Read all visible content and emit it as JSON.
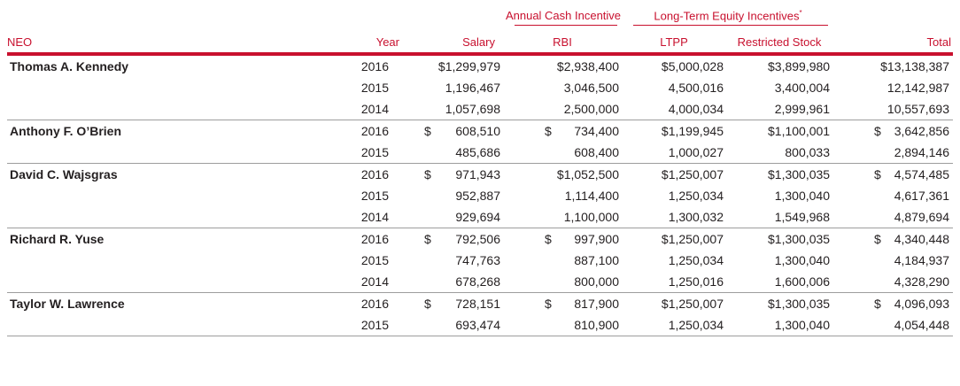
{
  "header": {
    "group_annual": "Annual Cash Incentive",
    "group_longterm": "Long-Term Equity Incentives",
    "group_longterm_mark": "*",
    "col_neo": "NEO",
    "col_year": "Year",
    "col_salary": "Salary",
    "col_rbi": "RBI",
    "col_ltpp": "LTPP",
    "col_rs": "Restricted Stock",
    "col_total": "Total"
  },
  "colors": {
    "accent": "#c8102e",
    "rule": "#9d9d9d",
    "text": "#231f20"
  },
  "neos": [
    {
      "name": "Thomas A. Kennedy",
      "rows": [
        {
          "year": "2016",
          "salary": "$1,299,979",
          "rbi": "$2,938,400",
          "ltpp": "$5,000,028",
          "rs": "$3,899,980",
          "total": "$13,138,387"
        },
        {
          "year": "2015",
          "salary": "1,196,467",
          "rbi": "3,046,500",
          "ltpp": "4,500,016",
          "rs": "3,400,004",
          "total": "12,142,987"
        },
        {
          "year": "2014",
          "salary": "1,057,698",
          "rbi": "2,500,000",
          "ltpp": "4,000,034",
          "rs": "2,999,961",
          "total": "10,557,693"
        }
      ]
    },
    {
      "name": "Anthony F. O’Brien",
      "rows": [
        {
          "year": "2016",
          "salary": "$ 608,510",
          "rbi": "$ 734,400",
          "ltpp": "$1,199,945",
          "rs": "$1,100,001",
          "total": "$ 3,642,856"
        },
        {
          "year": "2015",
          "salary": "485,686",
          "rbi": "608,400",
          "ltpp": "1,000,027",
          "rs": "800,033",
          "total": "2,894,146"
        }
      ]
    },
    {
      "name": "David C. Wajsgras",
      "rows": [
        {
          "year": "2016",
          "salary": "$ 971,943",
          "rbi": "$1,052,500",
          "ltpp": "$1,250,007",
          "rs": "$1,300,035",
          "total": "$ 4,574,485"
        },
        {
          "year": "2015",
          "salary": "952,887",
          "rbi": "1,114,400",
          "ltpp": "1,250,034",
          "rs": "1,300,040",
          "total": "4,617,361"
        },
        {
          "year": "2014",
          "salary": "929,694",
          "rbi": "1,100,000",
          "ltpp": "1,300,032",
          "rs": "1,549,968",
          "total": "4,879,694"
        }
      ]
    },
    {
      "name": "Richard R. Yuse",
      "rows": [
        {
          "year": "2016",
          "salary": "$ 792,506",
          "rbi": "$ 997,900",
          "ltpp": "$1,250,007",
          "rs": "$1,300,035",
          "total": "$ 4,340,448"
        },
        {
          "year": "2015",
          "salary": "747,763",
          "rbi": "887,100",
          "ltpp": "1,250,034",
          "rs": "1,300,040",
          "total": "4,184,937"
        },
        {
          "year": "2014",
          "salary": "678,268",
          "rbi": "800,000",
          "ltpp": "1,250,016",
          "rs": "1,600,006",
          "total": "4,328,290"
        }
      ]
    },
    {
      "name": "Taylor W. Lawrence",
      "rows": [
        {
          "year": "2016",
          "salary": "$ 728,151",
          "rbi": "$ 817,900",
          "ltpp": "$1,250,007",
          "rs": "$1,300,035",
          "total": "$ 4,096,093"
        },
        {
          "year": "2015",
          "salary": "693,474",
          "rbi": "810,900",
          "ltpp": "1,250,034",
          "rs": "1,300,040",
          "total": "4,054,448"
        }
      ]
    }
  ]
}
